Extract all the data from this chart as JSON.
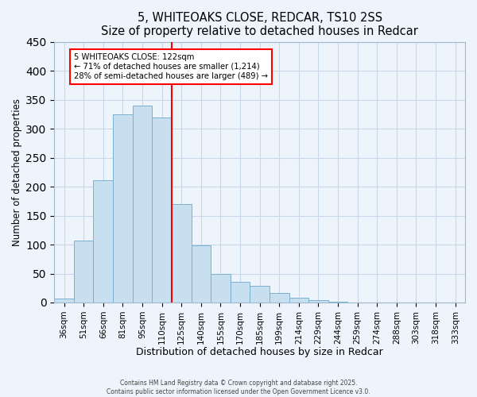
{
  "title": "5, WHITEOAKS CLOSE, REDCAR, TS10 2SS",
  "subtitle": "Size of property relative to detached houses in Redcar",
  "xlabel": "Distribution of detached houses by size in Redcar",
  "ylabel": "Number of detached properties",
  "bar_labels": [
    "36sqm",
    "51sqm",
    "66sqm",
    "81sqm",
    "95sqm",
    "110sqm",
    "125sqm",
    "140sqm",
    "155sqm",
    "170sqm",
    "185sqm",
    "199sqm",
    "214sqm",
    "229sqm",
    "244sqm",
    "259sqm",
    "274sqm",
    "288sqm",
    "303sqm",
    "318sqm",
    "333sqm"
  ],
  "bar_values": [
    7,
    107,
    211,
    325,
    340,
    320,
    170,
    98,
    50,
    36,
    29,
    17,
    8,
    4,
    2,
    0,
    0,
    0,
    0,
    0,
    0
  ],
  "bar_color": "#c8dff0",
  "bar_edge_color": "#7ab0d0",
  "vline_color": "red",
  "annotation_title": "5 WHITEOAKS CLOSE: 122sqm",
  "annotation_line1": "← 71% of detached houses are smaller (1,214)",
  "annotation_line2": "28% of semi-detached houses are larger (489) →",
  "annotation_box_color": "#ffffff",
  "annotation_box_edge": "red",
  "ylim": [
    0,
    450
  ],
  "yticks": [
    0,
    50,
    100,
    150,
    200,
    250,
    300,
    350,
    400,
    450
  ],
  "footer_line1": "Contains HM Land Registry data © Crown copyright and database right 2025.",
  "footer_line2": "Contains public sector information licensed under the Open Government Licence v3.0.",
  "background_color": "#eef4fb",
  "grid_color": "#c8d8eb"
}
